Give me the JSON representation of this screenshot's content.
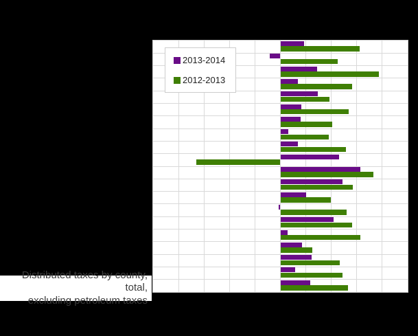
{
  "window": {
    "background_color": "#000000",
    "plot_background_color": "#ffffff"
  },
  "legend": {
    "items": [
      {
        "label": "2013-2014",
        "color": "#690c87"
      },
      {
        "label": "2012-2013",
        "color": "#3f7f04"
      }
    ]
  },
  "footnote": {
    "line1": "Distributed taxes by county, total,",
    "line2": "excluding petroleum taxes"
  },
  "chart_data": {
    "type": "bar",
    "orientation": "horizontal",
    "title": "",
    "xlabel": "",
    "ylabel": "",
    "row_count": 20,
    "category_labels_visible": false,
    "axis_tick_labels_visible": false,
    "categories": [
      "",
      "",
      "",
      "",
      "",
      "",
      "",
      "",
      "",
      "",
      "",
      "",
      "",
      "",
      "",
      "",
      "",
      "",
      "",
      ""
    ],
    "xlim": [
      -5,
      5
    ],
    "gridline_step": 1,
    "grid": true,
    "gridline_color": "#d9d9d9",
    "legend_position": "top-left-inside",
    "series": [
      {
        "name": "2013-2014",
        "color": "#690c87",
        "values": [
          0.93,
          -0.41,
          1.43,
          0.7,
          1.47,
          0.81,
          0.8,
          0.31,
          0.68,
          2.3,
          3.14,
          2.43,
          1.01,
          -0.07,
          2.1,
          0.29,
          0.85,
          1.22,
          0.58,
          1.17
        ]
      },
      {
        "name": "2012-2013",
        "color": "#3f7f04",
        "values": [
          3.1,
          2.25,
          3.86,
          2.83,
          1.92,
          2.69,
          2.04,
          1.89,
          2.57,
          -3.3,
          3.65,
          2.84,
          1.97,
          2.6,
          2.82,
          3.15,
          1.24,
          2.33,
          2.43,
          2.65
        ]
      }
    ]
  }
}
